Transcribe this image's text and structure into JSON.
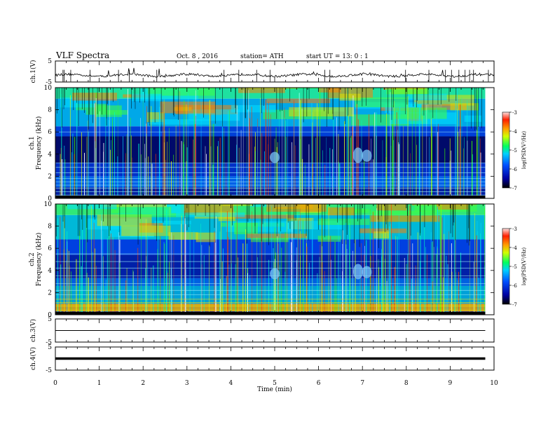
{
  "header": {
    "title": "VLF Spectra",
    "date": "Oct. 8 , 2016",
    "station": "station= ATH",
    "start": "start  UT =   13: 0  : 1"
  },
  "chart_data": [
    {
      "type": "line",
      "name": "ch1-waveform",
      "ylabel": "ch.1(V)",
      "ylim": [
        -5,
        5
      ],
      "yticks": [
        "5",
        "-5"
      ],
      "baseline_value": -1.8,
      "xlim": [
        0,
        10
      ]
    },
    {
      "type": "heatmap",
      "name": "ch1-spectrogram",
      "ylabel": "ch.1\nFrequency  (kHz)",
      "ylim": [
        0,
        10
      ],
      "yticks": [
        "0",
        "2",
        "4",
        "6",
        "8",
        "10"
      ],
      "xlim": [
        0,
        9.8
      ],
      "colorbar": {
        "label": "log(PSD(V²/Hz)",
        "range": [
          -7,
          -3
        ],
        "ticks": [
          "-3",
          "-4",
          "-5",
          "-6",
          "-7"
        ]
      }
    },
    {
      "type": "heatmap",
      "name": "ch2-spectrogram",
      "ylabel": "ch.2\nFrequency  (kHz)",
      "ylim": [
        0,
        10
      ],
      "yticks": [
        "0",
        "2",
        "4",
        "6",
        "8",
        "10"
      ],
      "xlim": [
        0,
        9.8
      ],
      "colorbar": {
        "label": "log(PSD(V²/Hz)",
        "range": [
          -7,
          -3
        ],
        "ticks": [
          "-3",
          "-4",
          "-5",
          "-6",
          "-7"
        ]
      }
    },
    {
      "type": "line",
      "name": "ch3-waveform",
      "ylabel": "ch.3(V)",
      "ylim": [
        -5,
        5
      ],
      "yticks": [
        "5",
        "-5"
      ],
      "baseline_value": 0,
      "xlim": [
        0,
        9.8
      ]
    },
    {
      "type": "line",
      "name": "ch4-waveform",
      "ylabel": "ch.4(V)",
      "ylim": [
        -5,
        5
      ],
      "yticks": [
        "5",
        "-5"
      ],
      "baseline_value": 0,
      "xlim": [
        0,
        9.8
      ]
    }
  ],
  "xaxis": {
    "label": "Time  (min)",
    "ticks": [
      "0",
      "1",
      "2",
      "3",
      "4",
      "5",
      "6",
      "7",
      "8",
      "9",
      "10"
    ],
    "range": [
      0,
      10
    ]
  },
  "colors": {
    "background": "#ffffff",
    "axis": "#000000",
    "spec_low": "#000040",
    "spec_mid": "#0000ff",
    "spec_high": "#ff0000"
  }
}
